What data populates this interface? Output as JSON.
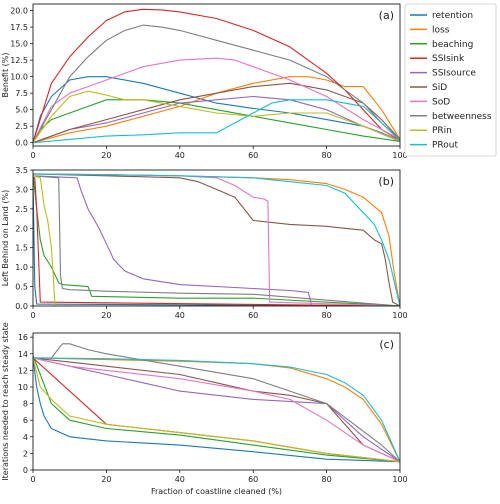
{
  "chart_data": [
    {
      "type": "line",
      "panel_label": "(a)",
      "ylabel": "Benefit (%)",
      "xlim": [
        0,
        100
      ],
      "ylim": [
        -0.5,
        21
      ],
      "yticks": [
        "0.0",
        "2.5",
        "5.0",
        "7.5",
        "10.0",
        "12.5",
        "15.0",
        "17.5",
        "20.0"
      ],
      "ytick_values": [
        0,
        2.5,
        5,
        7.5,
        10,
        12.5,
        15,
        17.5,
        20
      ],
      "xticks": [
        0,
        20,
        40,
        60,
        80,
        100
      ],
      "grid": false,
      "series": [
        {
          "name": "retention",
          "x": [
            0,
            2,
            5,
            10,
            15,
            20,
            30,
            40,
            50,
            60,
            70,
            80,
            90,
            95,
            100
          ],
          "y": [
            0,
            4,
            7,
            9.5,
            10,
            10,
            9,
            7.5,
            6,
            5.2,
            4.5,
            3.5,
            2.5,
            1.5,
            0.3
          ]
        },
        {
          "name": "loss",
          "x": [
            0,
            10,
            20,
            30,
            40,
            50,
            60,
            70,
            75,
            80,
            85,
            90,
            95,
            100
          ],
          "y": [
            0,
            1.5,
            2.5,
            4,
            5.5,
            7.5,
            9,
            10,
            10,
            9.5,
            8.5,
            8.5,
            5,
            0.5
          ]
        },
        {
          "name": "beaching",
          "x": [
            0,
            2,
            5,
            10,
            15,
            20,
            30,
            40,
            50,
            60,
            70,
            80,
            90,
            100
          ],
          "y": [
            0,
            2,
            3.5,
            4.5,
            5.5,
            6.5,
            6.5,
            6,
            5,
            4,
            3,
            2,
            1,
            0.2
          ]
        },
        {
          "name": "SSIsink",
          "x": [
            0,
            5,
            10,
            15,
            20,
            25,
            30,
            35,
            40,
            50,
            60,
            70,
            80,
            85,
            90,
            95,
            100
          ],
          "y": [
            0,
            9,
            13,
            16,
            18.5,
            19.8,
            20.2,
            20.1,
            19.8,
            18.8,
            17,
            14.5,
            10.5,
            8,
            5,
            2,
            0.3
          ]
        },
        {
          "name": "SSIsource",
          "x": [
            0,
            10,
            20,
            30,
            40,
            50,
            60,
            70,
            80,
            90,
            100
          ],
          "y": [
            0,
            2,
            3,
            4.5,
            6,
            6.5,
            7,
            6.5,
            5,
            2.5,
            0.2
          ]
        },
        {
          "name": "SiD",
          "x": [
            0,
            10,
            20,
            30,
            40,
            50,
            60,
            70,
            75,
            80,
            90,
            95,
            100
          ],
          "y": [
            0,
            2,
            3.5,
            5,
            6.5,
            7.5,
            8.5,
            9,
            8.5,
            8,
            6,
            3.5,
            0.5
          ]
        },
        {
          "name": "SoD",
          "x": [
            0,
            5,
            10,
            15,
            20,
            30,
            40,
            50,
            55,
            60,
            70,
            80,
            90,
            100
          ],
          "y": [
            0,
            5.5,
            7.5,
            8.5,
            9.5,
            11.5,
            12.5,
            12.8,
            12.5,
            11.5,
            9.5,
            7,
            3.5,
            0.5
          ]
        },
        {
          "name": "betweenness",
          "x": [
            0,
            5,
            10,
            15,
            20,
            25,
            30,
            35,
            40,
            50,
            60,
            70,
            80,
            90,
            95,
            100
          ],
          "y": [
            0,
            5,
            10,
            13,
            15.5,
            17,
            17.8,
            17.5,
            17,
            15.5,
            14,
            12.5,
            10,
            6,
            3,
            0.5
          ]
        },
        {
          "name": "PRin",
          "x": [
            0,
            5,
            10,
            15,
            20,
            25,
            30,
            40,
            50,
            60,
            70,
            80,
            90,
            100
          ],
          "y": [
            0,
            4,
            7,
            7.8,
            7.2,
            6.5,
            6.5,
            5.5,
            4.5,
            4,
            4.5,
            4.5,
            2.5,
            0.3
          ]
        },
        {
          "name": "PRout",
          "x": [
            0,
            10,
            20,
            30,
            40,
            50,
            60,
            65,
            70,
            80,
            90,
            95,
            100
          ],
          "y": [
            0,
            0.5,
            1,
            1.2,
            1.5,
            1.5,
            4.5,
            6,
            6.5,
            6.5,
            5.5,
            3,
            0.3
          ]
        }
      ]
    },
    {
      "type": "line",
      "panel_label": "(b)",
      "ylabel": "Left Behind on Land (%)",
      "xlim": [
        0,
        100
      ],
      "ylim": [
        0,
        3.5
      ],
      "yticks": [
        "0.0",
        "0.5",
        "1.0",
        "1.5",
        "2.0",
        "2.5",
        "3.0",
        "3.5"
      ],
      "ytick_values": [
        0,
        0.5,
        1,
        1.5,
        2,
        2.5,
        3,
        3.5
      ],
      "xticks": [
        0,
        20,
        40,
        60,
        80,
        100
      ],
      "grid": false,
      "series": [
        {
          "name": "retention",
          "x": [
            0,
            0.5,
            1,
            100
          ],
          "y": [
            3.2,
            0.5,
            0.05,
            0.0
          ]
        },
        {
          "name": "loss",
          "x": [
            0,
            20,
            40,
            60,
            70,
            80,
            85,
            90,
            95,
            97,
            98.5,
            100
          ],
          "y": [
            3.4,
            3.38,
            3.35,
            3.3,
            3.25,
            3.15,
            3.0,
            2.8,
            2.4,
            1.8,
            0.8,
            0.0
          ]
        },
        {
          "name": "beaching",
          "x": [
            0,
            1,
            2,
            3,
            5,
            7,
            8,
            15,
            16,
            40,
            60,
            100
          ],
          "y": [
            3.4,
            2.5,
            1.7,
            1.3,
            1.0,
            0.6,
            0.55,
            0.5,
            0.25,
            0.2,
            0.2,
            0.0
          ]
        },
        {
          "name": "SSIsink",
          "x": [
            0,
            0.5,
            1,
            2,
            100
          ],
          "y": [
            3.3,
            3.3,
            2.5,
            0.1,
            0.0
          ]
        },
        {
          "name": "SSIsource",
          "x": [
            0,
            12,
            13,
            15,
            18,
            20,
            22,
            25,
            30,
            40,
            60,
            70,
            75,
            76,
            100
          ],
          "y": [
            3.35,
            3.3,
            3.0,
            2.5,
            2.0,
            1.6,
            1.2,
            0.9,
            0.7,
            0.55,
            0.45,
            0.4,
            0.35,
            0.0,
            0.0
          ]
        },
        {
          "name": "SiD",
          "x": [
            0,
            20,
            40,
            45,
            50,
            55,
            60,
            70,
            80,
            85,
            90,
            93,
            95,
            96,
            97,
            98,
            100
          ],
          "y": [
            3.4,
            3.35,
            3.3,
            3.2,
            3.0,
            2.8,
            2.2,
            2.1,
            2.05,
            2.0,
            1.95,
            1.7,
            1.6,
            1.2,
            0.6,
            0.1,
            0.0
          ]
        },
        {
          "name": "SoD",
          "x": [
            0,
            20,
            40,
            50,
            55,
            60,
            63,
            64,
            64.5,
            100
          ],
          "y": [
            3.4,
            3.38,
            3.35,
            3.3,
            3.1,
            2.8,
            2.75,
            2.7,
            0.1,
            0.0
          ]
        },
        {
          "name": "betweenness",
          "x": [
            0,
            7,
            7.5,
            8,
            10,
            20,
            40,
            60,
            100
          ],
          "y": [
            3.35,
            3.3,
            0.8,
            0.45,
            0.42,
            0.38,
            0.33,
            0.3,
            0.0
          ]
        },
        {
          "name": "PRin",
          "x": [
            0,
            2,
            3,
            4,
            5,
            5.5,
            6,
            100
          ],
          "y": [
            3.35,
            3.3,
            2.6,
            2.2,
            1.5,
            0.8,
            0.0,
            0.0
          ]
        },
        {
          "name": "PRout",
          "x": [
            0,
            20,
            40,
            60,
            70,
            80,
            85,
            90,
            93,
            95,
            97,
            99,
            100
          ],
          "y": [
            3.4,
            3.38,
            3.35,
            3.3,
            3.2,
            3.1,
            2.9,
            2.4,
            2.1,
            1.7,
            1.2,
            0.4,
            0.0
          ]
        }
      ]
    },
    {
      "type": "line",
      "panel_label": "(c)",
      "ylabel": "Iterations needed to reach steady state",
      "xlabel": "Fraction of coastline cleaned (%)",
      "xlim": [
        0,
        100
      ],
      "ylim": [
        0,
        16.5
      ],
      "yticks": [
        "0",
        "2",
        "4",
        "6",
        "8",
        "10",
        "12",
        "14",
        "16"
      ],
      "ytick_values": [
        0,
        2,
        4,
        6,
        8,
        10,
        12,
        14,
        16
      ],
      "xticks": [
        0,
        20,
        40,
        60,
        80,
        100
      ],
      "xticklabels": [
        "0",
        "20",
        "40",
        "60",
        "80",
        "100"
      ],
      "grid": false,
      "series": [
        {
          "name": "retention",
          "x": [
            0,
            1,
            2,
            3,
            5,
            10,
            20,
            40,
            60,
            80,
            100
          ],
          "y": [
            13.5,
            10,
            8,
            6.5,
            5,
            4,
            3.5,
            3,
            2.2,
            1.3,
            1
          ]
        },
        {
          "name": "loss",
          "x": [
            0,
            20,
            40,
            60,
            70,
            80,
            85,
            90,
            95,
            100
          ],
          "y": [
            13.5,
            13.3,
            13.1,
            12.8,
            12.3,
            11,
            10,
            8.5,
            5.5,
            1
          ]
        },
        {
          "name": "beaching",
          "x": [
            0,
            5,
            10,
            20,
            40,
            60,
            80,
            100
          ],
          "y": [
            13.8,
            8,
            6,
            5,
            4.2,
            3,
            1.8,
            1
          ]
        },
        {
          "name": "SSIsink",
          "x": [
            0,
            20,
            40,
            60,
            80,
            100
          ],
          "y": [
            13.5,
            5.5,
            4.5,
            3.5,
            2,
            1
          ]
        },
        {
          "name": "SSIsource",
          "x": [
            0,
            10,
            20,
            30,
            40,
            60,
            80,
            90,
            100
          ],
          "y": [
            13.5,
            12.5,
            11.5,
            10.5,
            9.5,
            8.5,
            8,
            4,
            1
          ]
        },
        {
          "name": "SiD",
          "x": [
            0,
            20,
            40,
            50,
            60,
            70,
            80,
            90,
            100
          ],
          "y": [
            13.5,
            12.5,
            11.5,
            10.5,
            9.5,
            9,
            8,
            3,
            1
          ]
        },
        {
          "name": "SoD",
          "x": [
            0,
            10,
            20,
            40,
            60,
            65,
            70,
            80,
            90,
            100
          ],
          "y": [
            13.5,
            12.5,
            12,
            11,
            9.5,
            9,
            8.5,
            6,
            3,
            1
          ]
        },
        {
          "name": "betweenness",
          "x": [
            0,
            5,
            8,
            10,
            15,
            20,
            40,
            60,
            80,
            95,
            100
          ],
          "y": [
            13.5,
            13.5,
            15.2,
            15.2,
            14.5,
            14,
            12.5,
            11,
            8,
            3,
            1
          ]
        },
        {
          "name": "PRin",
          "x": [
            0,
            2,
            5,
            10,
            20,
            40,
            60,
            80,
            100
          ],
          "y": [
            13.5,
            10,
            8.5,
            6.5,
            5.5,
            4.5,
            3.5,
            2,
            1
          ]
        },
        {
          "name": "PRout",
          "x": [
            0,
            20,
            40,
            60,
            70,
            80,
            85,
            90,
            95,
            100
          ],
          "y": [
            13.5,
            13.4,
            13.2,
            12.8,
            12.4,
            11.5,
            10.5,
            9,
            6,
            1
          ]
        }
      ]
    }
  ],
  "legend": {
    "placement": "right",
    "items": [
      {
        "label": "retention",
        "color": "#1f77b4"
      },
      {
        "label": "loss",
        "color": "#ff7f0e"
      },
      {
        "label": "beaching",
        "color": "#2ca02c"
      },
      {
        "label": "SSIsink",
        "color": "#d62728"
      },
      {
        "label": "SSIsource",
        "color": "#9467bd"
      },
      {
        "label": "SiD",
        "color": "#8c564b"
      },
      {
        "label": "SoD",
        "color": "#e377c2"
      },
      {
        "label": "betweenness",
        "color": "#7f7f7f"
      },
      {
        "label": "PRin",
        "color": "#bcbd22"
      },
      {
        "label": "PRout",
        "color": "#17becf"
      }
    ]
  }
}
